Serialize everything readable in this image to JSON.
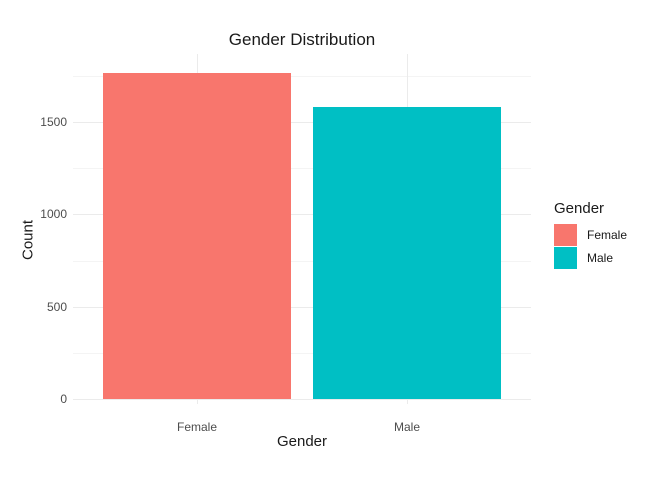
{
  "chart_data": {
    "type": "bar",
    "title": "Gender Distribution",
    "xlabel": "Gender",
    "ylabel": "Count",
    "categories": [
      "Female",
      "Male"
    ],
    "values": [
      1765,
      1581
    ],
    "colors": [
      "#F8766D",
      "#00BFC4"
    ],
    "ylim": [
      0,
      1850
    ],
    "yticks": [
      0,
      500,
      1000,
      1500
    ],
    "grid": true,
    "legend": {
      "title": "Gender",
      "position": "right",
      "entries": [
        {
          "label": "Female",
          "color": "#F8766D"
        },
        {
          "label": "Male",
          "color": "#00BFC4"
        }
      ]
    }
  },
  "ui": {
    "ytick_labels": [
      "0",
      "500",
      "1000",
      "1500"
    ],
    "xtick_labels": [
      "Female",
      "Male"
    ]
  }
}
